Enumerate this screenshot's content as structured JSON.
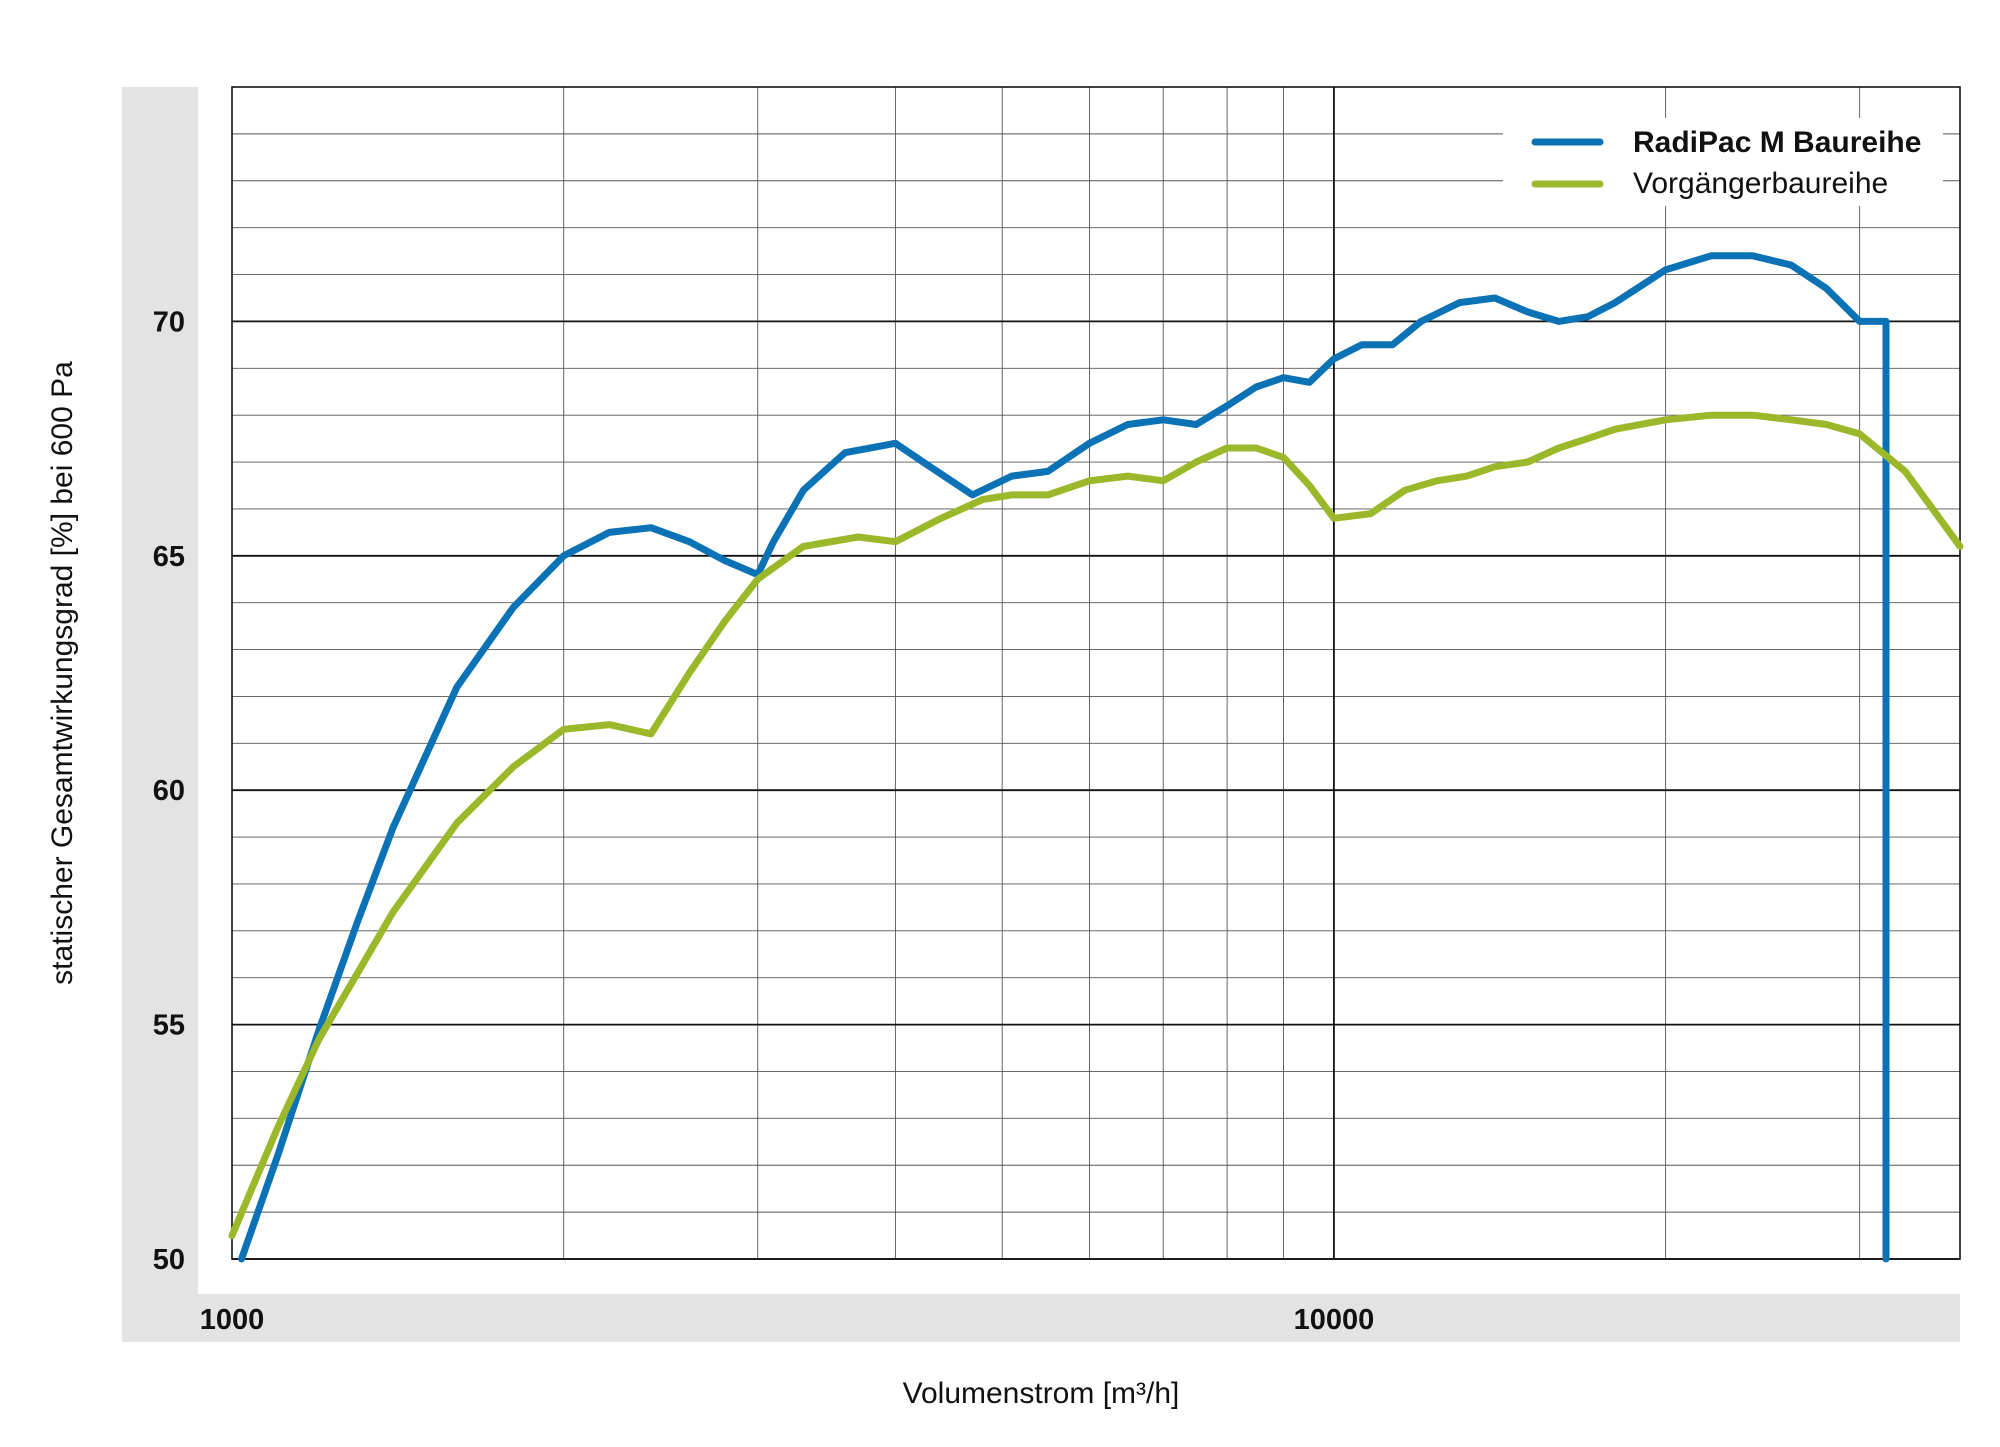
{
  "chart_data": {
    "type": "line",
    "xlabel": "Volumenstrom [m³/h]",
    "ylabel": "statischer Gesamtwirkungsgrad [%] bei 600 Pa",
    "x_scale": "log",
    "xlim": [
      1000,
      37000
    ],
    "ylim": [
      50,
      75
    ],
    "x_ticks": [
      1000,
      10000
    ],
    "x_tick_labels": [
      "1000",
      "10000"
    ],
    "y_ticks": [
      50,
      55,
      60,
      65,
      70
    ],
    "y_tick_labels": [
      "50",
      "55",
      "60",
      "65",
      "70"
    ],
    "grid": true,
    "legend_position": "top-right",
    "colors": {
      "radipac": "#0a72b5",
      "vorgaenger": "#9bb82a"
    },
    "series": [
      {
        "name": "RadiPac M Baureihe",
        "color": "#0a72b5",
        "x": [
          1020,
          1100,
          1200,
          1300,
          1400,
          1600,
          1800,
          2000,
          2200,
          2400,
          2600,
          2800,
          3000,
          3100,
          3300,
          3600,
          4000,
          4300,
          4700,
          5100,
          5500,
          6000,
          6500,
          7000,
          7500,
          8000,
          8500,
          9000,
          9500,
          10000,
          10600,
          11300,
          12000,
          13000,
          14000,
          15000,
          16000,
          17000,
          18000,
          20000,
          22000,
          24000,
          26000,
          28000,
          30000,
          31700,
          31700
        ],
        "y": [
          50.0,
          52.2,
          54.9,
          57.2,
          59.2,
          62.2,
          63.9,
          65.0,
          65.5,
          65.6,
          65.3,
          64.9,
          64.6,
          65.3,
          66.4,
          67.2,
          67.4,
          66.9,
          66.3,
          66.7,
          66.8,
          67.4,
          67.8,
          67.9,
          67.8,
          68.2,
          68.6,
          68.8,
          68.7,
          69.2,
          69.5,
          69.5,
          70.0,
          70.4,
          70.5,
          70.2,
          70.0,
          70.1,
          70.4,
          71.1,
          71.4,
          71.4,
          71.2,
          70.7,
          70.0,
          70.0,
          50.0
        ]
      },
      {
        "name": "Vorgängerbaureihe",
        "color": "#9bb82a",
        "x": [
          1000,
          1100,
          1200,
          1300,
          1400,
          1600,
          1800,
          2000,
          2200,
          2400,
          2600,
          2800,
          3000,
          3300,
          3700,
          4000,
          4400,
          4800,
          5100,
          5500,
          6000,
          6500,
          7000,
          7500,
          8000,
          8500,
          9000,
          9500,
          10000,
          10800,
          11600,
          12400,
          13200,
          14000,
          15000,
          16000,
          17000,
          18000,
          20000,
          22000,
          24000,
          26000,
          28000,
          30000,
          33000,
          37000
        ],
        "y": [
          50.5,
          52.8,
          54.7,
          56.1,
          57.4,
          59.3,
          60.5,
          61.3,
          61.4,
          61.2,
          62.5,
          63.6,
          64.5,
          65.2,
          65.4,
          65.3,
          65.8,
          66.2,
          66.3,
          66.3,
          66.6,
          66.7,
          66.6,
          67.0,
          67.3,
          67.3,
          67.1,
          66.5,
          65.8,
          65.9,
          66.4,
          66.6,
          66.7,
          66.9,
          67.0,
          67.3,
          67.5,
          67.7,
          67.9,
          68.0,
          68.0,
          67.9,
          67.8,
          67.6,
          66.8,
          65.2
        ]
      }
    ]
  }
}
